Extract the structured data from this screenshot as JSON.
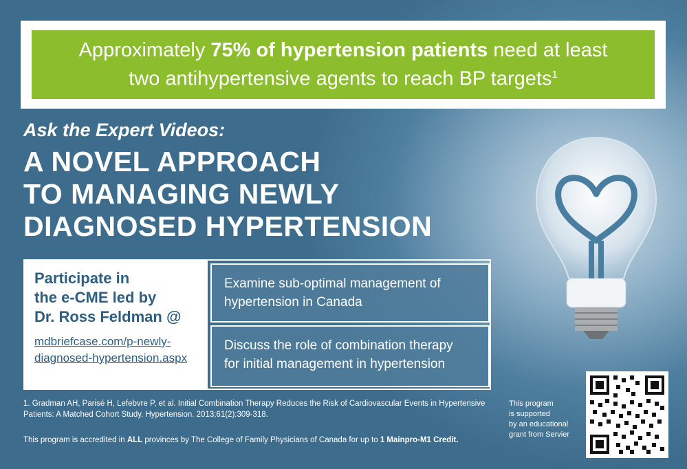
{
  "headline": {
    "part1": "Approximately ",
    "emphasis": "75% of hypertension patients",
    "part2": " need at least",
    "line2": "two antihypertensive agents to reach BP targets",
    "superscript": "1"
  },
  "kicker": "Ask the Expert Videos:",
  "title_lines": [
    "A NOVEL APPROACH",
    "TO MANAGING NEWLY",
    "DIAGNOSED HYPERTENSION"
  ],
  "cta": {
    "line1": "Participate in",
    "line2": "the e-CME led by",
    "line3": "Dr. Ross Feldman @",
    "url_line1": "mdbriefcase.com/p-newly-",
    "url_line2": "diagnosed-hypertension.aspx"
  },
  "objectives": [
    {
      "line1": "Examine sub-optimal management of",
      "line2": "hypertension in Canada"
    },
    {
      "line1": "Discuss the role of combination therapy",
      "line2": "for initial management in hypertension"
    }
  ],
  "reference": {
    "line1": "1. Gradman AH, Parisé H, Lefebvre P, et al. Initial Combination Therapy Reduces the Risk of Cardiovascular Events in Hypertensive",
    "line2": "Patients: A Matched Cohort Study. Hypertension. 2013;61(2):309-318."
  },
  "accreditation": {
    "part1": "This program is accredited in ",
    "all": "ALL",
    "part2": " provinces by The College of Family Physicians of Canada for up to ",
    "credit": "1 Mainpro-M1 Credit."
  },
  "grant": [
    "This program",
    "is supported",
    "by an educational",
    "grant from Servier"
  ],
  "colors": {
    "background": "#3f6e8e",
    "headline_green": "#8bbd2c",
    "text_blue": "#2e5e80",
    "white": "#ffffff"
  },
  "icons": {
    "bulb": "heart-lightbulb-icon",
    "qr": "qr-code-icon"
  }
}
